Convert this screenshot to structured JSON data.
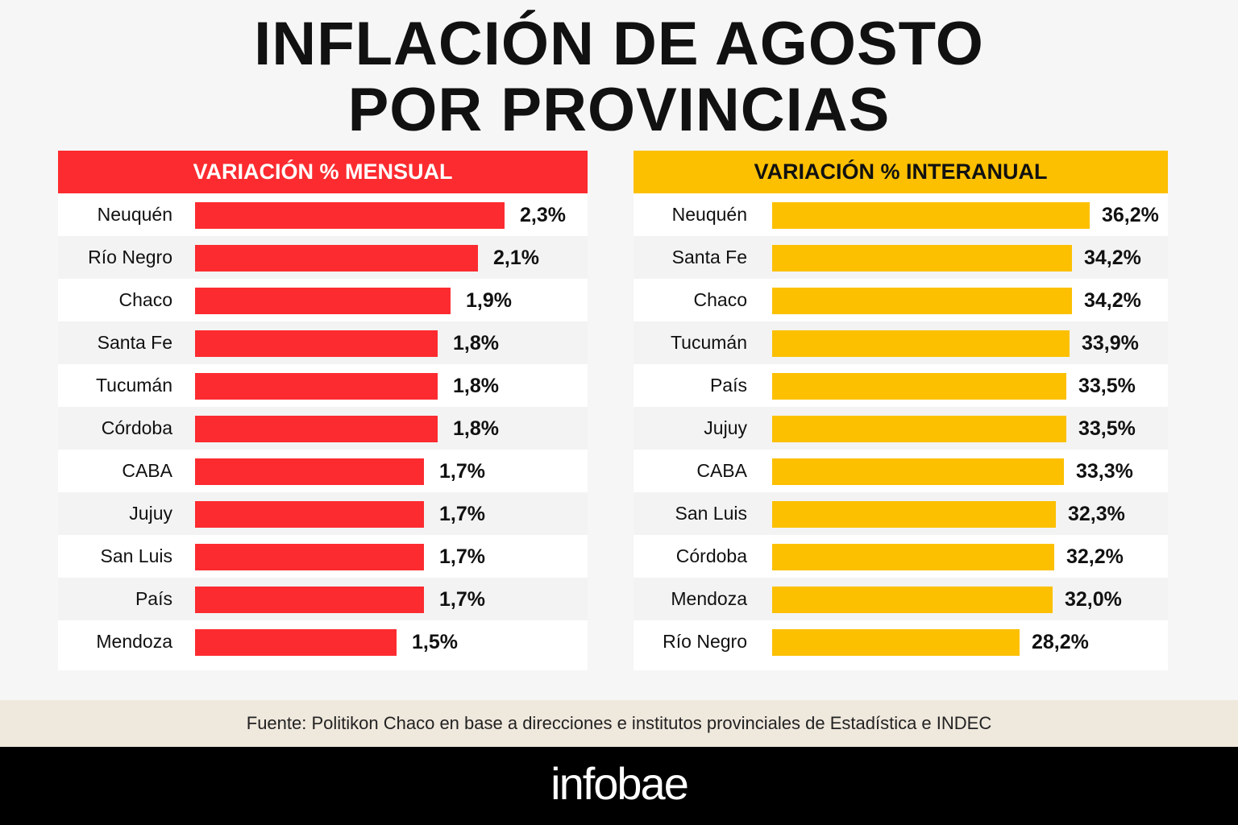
{
  "title": {
    "line1": "INFLACIÓN DE AGOSTO",
    "line2": "POR PROVINCIAS"
  },
  "colors": {
    "monthly": "#fc2b30",
    "annual": "#fcc000"
  },
  "chart_data": [
    {
      "type": "bar",
      "orientation": "horizontal",
      "title": "VARIACIÓN % MENSUAL",
      "categories": [
        "Neuquén",
        "Río Negro",
        "Chaco",
        "Santa Fe",
        "Tucumán",
        "Córdoba",
        "CABA",
        "Jujuy",
        "San Luis",
        "País",
        "Mendoza"
      ],
      "values": [
        2.3,
        2.1,
        1.9,
        1.8,
        1.8,
        1.8,
        1.7,
        1.7,
        1.7,
        1.7,
        1.5
      ],
      "value_labels": [
        "2,3%",
        "2,1%",
        "1,9%",
        "1,8%",
        "1,8%",
        "1,8%",
        "1,7%",
        "1,7%",
        "1,7%",
        "1,7%",
        "1,5%"
      ]
    },
    {
      "type": "bar",
      "orientation": "horizontal",
      "title": "VARIACIÓN % INTERANUAL",
      "categories": [
        "Neuquén",
        "Santa Fe",
        "Chaco",
        "Tucumán",
        "País",
        "Jujuy",
        "CABA",
        "San Luis",
        "Córdoba",
        "Mendoza",
        "Río Negro"
      ],
      "values": [
        36.2,
        34.2,
        34.2,
        33.9,
        33.5,
        33.5,
        33.3,
        32.3,
        32.2,
        32.0,
        28.2
      ],
      "value_labels": [
        "36,2%",
        "34,2%",
        "34,2%",
        "33,9%",
        "33,5%",
        "33,5%",
        "33,3%",
        "32,3%",
        "32,2%",
        "32,0%",
        "28,2%"
      ]
    }
  ],
  "source": "Fuente: Politikon Chaco en base a direcciones e institutos provinciales de Estadística e INDEC",
  "logo": "infobae"
}
